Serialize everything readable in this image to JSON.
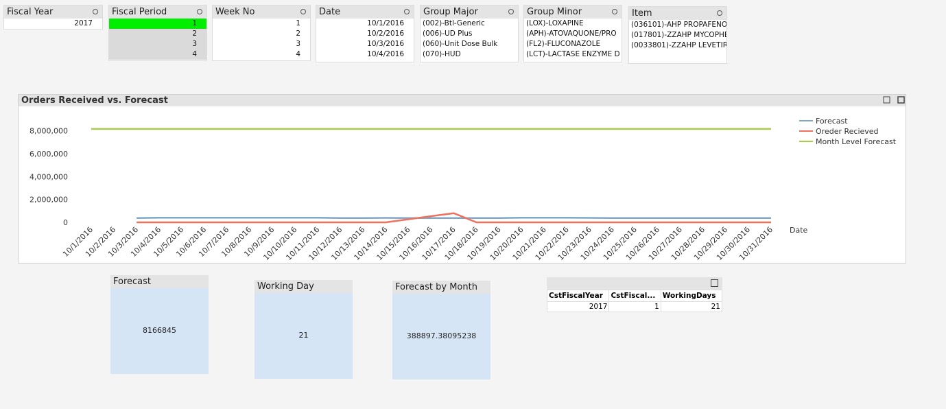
{
  "listboxes": [
    {
      "title": "Fiscal Year",
      "items": [
        "2017"
      ]
    },
    {
      "title": "Fiscal Period",
      "items": [
        "1",
        "2",
        "3",
        "4"
      ],
      "selected": 0
    },
    {
      "title": "Week No",
      "items": [
        "1",
        "2",
        "3",
        "4"
      ]
    },
    {
      "title": "Date",
      "items": [
        "10/1/2016",
        "10/2/2016",
        "10/3/2016",
        "10/4/2016"
      ]
    },
    {
      "title": "Group Major",
      "items": [
        "(002)-Btl-Generic",
        "(006)-UD Plus",
        "(060)-Unit Dose Bulk",
        "(070)-HUD"
      ]
    },
    {
      "title": "Group Minor",
      "items": [
        "(LOX)-LOXAPINE",
        "(APH)-ATOVAQUONE/PRO",
        "(FL2)-FLUCONAZOLE",
        "(LCT)-LACTASE ENZYME D"
      ]
    },
    {
      "title": "Item",
      "items": [
        "(036101)-AHP PROPAFENO",
        "(017801)-ZZAHP MYCOPHE",
        "(0033801)-ZZAHP LEVETIR"
      ]
    }
  ],
  "chart_data": {
    "type": "line",
    "title": "Orders Received vs. Forecast",
    "x_label": "Date",
    "categories": [
      "10/1/2016",
      "10/2/2016",
      "10/3/2016",
      "10/4/2016",
      "10/5/2016",
      "10/6/2016",
      "10/7/2016",
      "10/8/2016",
      "10/9/2016",
      "10/10/2016",
      "10/11/2016",
      "10/12/2016",
      "10/13/2016",
      "10/14/2016",
      "10/15/2016",
      "10/16/2016",
      "10/17/2016",
      "10/18/2016",
      "10/19/2016",
      "10/20/2016",
      "10/21/2016",
      "10/22/2016",
      "10/23/2016",
      "10/24/2016",
      "10/25/2016",
      "10/26/2016",
      "10/27/2016",
      "10/28/2016",
      "10/29/2016",
      "10/30/2016",
      "10/31/2016"
    ],
    "series": [
      {
        "name": "Forecast",
        "color": "#7ea7cb",
        "values": [
          null,
          null,
          380000,
          400000,
          410000,
          410000,
          410000,
          410000,
          410000,
          410000,
          410000,
          380000,
          380000,
          390000,
          370000,
          370000,
          370000,
          370000,
          380000,
          410000,
          410000,
          410000,
          390000,
          370000,
          370000,
          370000,
          370000,
          370000,
          370000,
          370000,
          370000
        ]
      },
      {
        "name": "Oreder Recieved",
        "color": "#f0705e",
        "values": [
          null,
          null,
          0,
          0,
          0,
          0,
          0,
          0,
          0,
          0,
          0,
          0,
          0,
          0,
          270000,
          540000,
          800000,
          0,
          0,
          0,
          0,
          0,
          0,
          0,
          0,
          0,
          0,
          0,
          0,
          0,
          0
        ]
      },
      {
        "name": "Month Level Forecast",
        "color": "#a9cc4b",
        "values": [
          8166845,
          8166845,
          8166845,
          8166845,
          8166845,
          8166845,
          8166845,
          8166845,
          8166845,
          8166845,
          8166845,
          8166845,
          8166845,
          8166845,
          8166845,
          8166845,
          8166845,
          8166845,
          8166845,
          8166845,
          8166845,
          8166845,
          8166845,
          8166845,
          8166845,
          8166845,
          8166845,
          8166845,
          8166845,
          8166845,
          8166845
        ]
      }
    ],
    "ylim": [
      0,
      9000000
    ],
    "yticks": [
      0,
      {
        "value": 2000000,
        "label": "2,000,000"
      },
      {
        "value": 4000000,
        "label": "4,000,000"
      },
      {
        "value": 6000000,
        "label": "6,000,000"
      },
      {
        "value": 8000000,
        "label": "8,000,000"
      }
    ],
    "grid": false,
    "legend": "top-right"
  },
  "kpis": [
    {
      "title": "Forecast",
      "value": "8166845"
    },
    {
      "title": "Working Day",
      "value": "21"
    },
    {
      "title": "Forecast by Month",
      "value": "388897.38095238"
    }
  ],
  "table": {
    "columns": [
      "CstFiscalYear",
      "CstFiscal...",
      "WorkingDays"
    ],
    "rows": [
      [
        "2017",
        "1",
        "21"
      ]
    ]
  }
}
